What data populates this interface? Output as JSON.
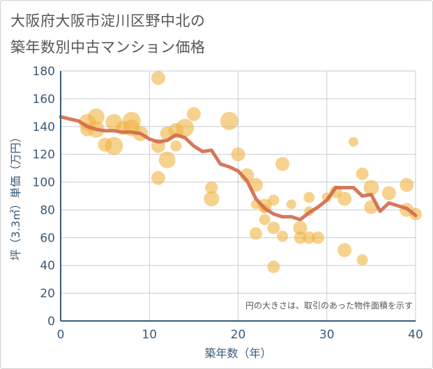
{
  "title_line1": "大阪府大阪市淀川区野中北の",
  "title_line2": "築年数別中古マンション価格",
  "chart_data": {
    "type": "scatter",
    "xlabel": "築年数（年）",
    "ylabel": "坪（3.3㎡）単価（万円）",
    "xlim": [
      0,
      40
    ],
    "ylim": [
      0,
      180
    ],
    "xticks": [
      0,
      10,
      20,
      30,
      40
    ],
    "yticks": [
      0,
      20,
      40,
      60,
      80,
      100,
      120,
      140,
      160,
      180
    ],
    "grid": true,
    "note": "円の大きさは、取引のあった物件面積を示す",
    "colors": {
      "bubble": "#f0b443",
      "line": "#d2694a",
      "axis": "#3a5a7a",
      "grid": "#c5cdd6"
    },
    "bubbles": [
      {
        "x": 3,
        "y": 143,
        "s": 12
      },
      {
        "x": 3,
        "y": 138,
        "s": 10
      },
      {
        "x": 4,
        "y": 147,
        "s": 12
      },
      {
        "x": 4,
        "y": 138,
        "s": 12
      },
      {
        "x": 5,
        "y": 127,
        "s": 10
      },
      {
        "x": 6,
        "y": 143,
        "s": 12
      },
      {
        "x": 6,
        "y": 126,
        "s": 13
      },
      {
        "x": 7,
        "y": 139,
        "s": 10
      },
      {
        "x": 8,
        "y": 144,
        "s": 13
      },
      {
        "x": 8,
        "y": 139,
        "s": 12
      },
      {
        "x": 9,
        "y": 135,
        "s": 11
      },
      {
        "x": 11,
        "y": 175,
        "s": 10
      },
      {
        "x": 11,
        "y": 126,
        "s": 10
      },
      {
        "x": 11,
        "y": 103,
        "s": 10
      },
      {
        "x": 12,
        "y": 135,
        "s": 10
      },
      {
        "x": 12,
        "y": 116,
        "s": 12
      },
      {
        "x": 13,
        "y": 126,
        "s": 8
      },
      {
        "x": 13,
        "y": 137,
        "s": 11
      },
      {
        "x": 14,
        "y": 139,
        "s": 13
      },
      {
        "x": 15,
        "y": 149,
        "s": 10
      },
      {
        "x": 17,
        "y": 96,
        "s": 9
      },
      {
        "x": 17,
        "y": 88,
        "s": 11
      },
      {
        "x": 19,
        "y": 144,
        "s": 13
      },
      {
        "x": 20,
        "y": 120,
        "s": 10
      },
      {
        "x": 21,
        "y": 105,
        "s": 10
      },
      {
        "x": 22,
        "y": 98,
        "s": 10
      },
      {
        "x": 22,
        "y": 84,
        "s": 7
      },
      {
        "x": 22,
        "y": 63,
        "s": 9
      },
      {
        "x": 23,
        "y": 83,
        "s": 10
      },
      {
        "x": 23,
        "y": 73,
        "s": 8
      },
      {
        "x": 23,
        "y": 81,
        "s": 7
      },
      {
        "x": 24,
        "y": 87,
        "s": 8
      },
      {
        "x": 24,
        "y": 67,
        "s": 9
      },
      {
        "x": 24,
        "y": 39,
        "s": 9
      },
      {
        "x": 25,
        "y": 113,
        "s": 10
      },
      {
        "x": 25,
        "y": 61,
        "s": 8
      },
      {
        "x": 26,
        "y": 84,
        "s": 7
      },
      {
        "x": 27,
        "y": 67,
        "s": 10
      },
      {
        "x": 27,
        "y": 60,
        "s": 9
      },
      {
        "x": 28,
        "y": 89,
        "s": 8
      },
      {
        "x": 28,
        "y": 79,
        "s": 7
      },
      {
        "x": 28,
        "y": 60,
        "s": 9
      },
      {
        "x": 29,
        "y": 60,
        "s": 9
      },
      {
        "x": 30,
        "y": 89,
        "s": 7
      },
      {
        "x": 31,
        "y": 93,
        "s": 9
      },
      {
        "x": 32,
        "y": 88,
        "s": 10
      },
      {
        "x": 32,
        "y": 51,
        "s": 10
      },
      {
        "x": 33,
        "y": 129,
        "s": 7
      },
      {
        "x": 34,
        "y": 106,
        "s": 9
      },
      {
        "x": 34,
        "y": 44,
        "s": 8
      },
      {
        "x": 35,
        "y": 96,
        "s": 11
      },
      {
        "x": 35,
        "y": 82,
        "s": 10
      },
      {
        "x": 37,
        "y": 92,
        "s": 10
      },
      {
        "x": 39,
        "y": 98,
        "s": 10
      },
      {
        "x": 39,
        "y": 80,
        "s": 10
      },
      {
        "x": 40,
        "y": 77,
        "s": 9
      }
    ],
    "avg_line": [
      {
        "x": 0,
        "y": 147
      },
      {
        "x": 2,
        "y": 144
      },
      {
        "x": 3,
        "y": 140
      },
      {
        "x": 4,
        "y": 138
      },
      {
        "x": 5,
        "y": 137
      },
      {
        "x": 6,
        "y": 137
      },
      {
        "x": 7,
        "y": 136
      },
      {
        "x": 8,
        "y": 136
      },
      {
        "x": 9,
        "y": 135
      },
      {
        "x": 10,
        "y": 131
      },
      {
        "x": 11,
        "y": 129
      },
      {
        "x": 12,
        "y": 130
      },
      {
        "x": 13,
        "y": 134
      },
      {
        "x": 14,
        "y": 132
      },
      {
        "x": 15,
        "y": 126
      },
      {
        "x": 16,
        "y": 122
      },
      {
        "x": 17,
        "y": 123
      },
      {
        "x": 18,
        "y": 113
      },
      {
        "x": 19,
        "y": 111
      },
      {
        "x": 20,
        "y": 108
      },
      {
        "x": 21,
        "y": 101
      },
      {
        "x": 22,
        "y": 88
      },
      {
        "x": 23,
        "y": 81
      },
      {
        "x": 24,
        "y": 77
      },
      {
        "x": 25,
        "y": 75
      },
      {
        "x": 26,
        "y": 75
      },
      {
        "x": 27,
        "y": 73
      },
      {
        "x": 28,
        "y": 78
      },
      {
        "x": 29,
        "y": 82
      },
      {
        "x": 30,
        "y": 87
      },
      {
        "x": 31,
        "y": 96
      },
      {
        "x": 32,
        "y": 96
      },
      {
        "x": 33,
        "y": 96
      },
      {
        "x": 34,
        "y": 90
      },
      {
        "x": 35,
        "y": 91
      },
      {
        "x": 36,
        "y": 79
      },
      {
        "x": 37,
        "y": 85
      },
      {
        "x": 38,
        "y": 83
      },
      {
        "x": 39,
        "y": 81
      },
      {
        "x": 40,
        "y": 76
      }
    ]
  }
}
